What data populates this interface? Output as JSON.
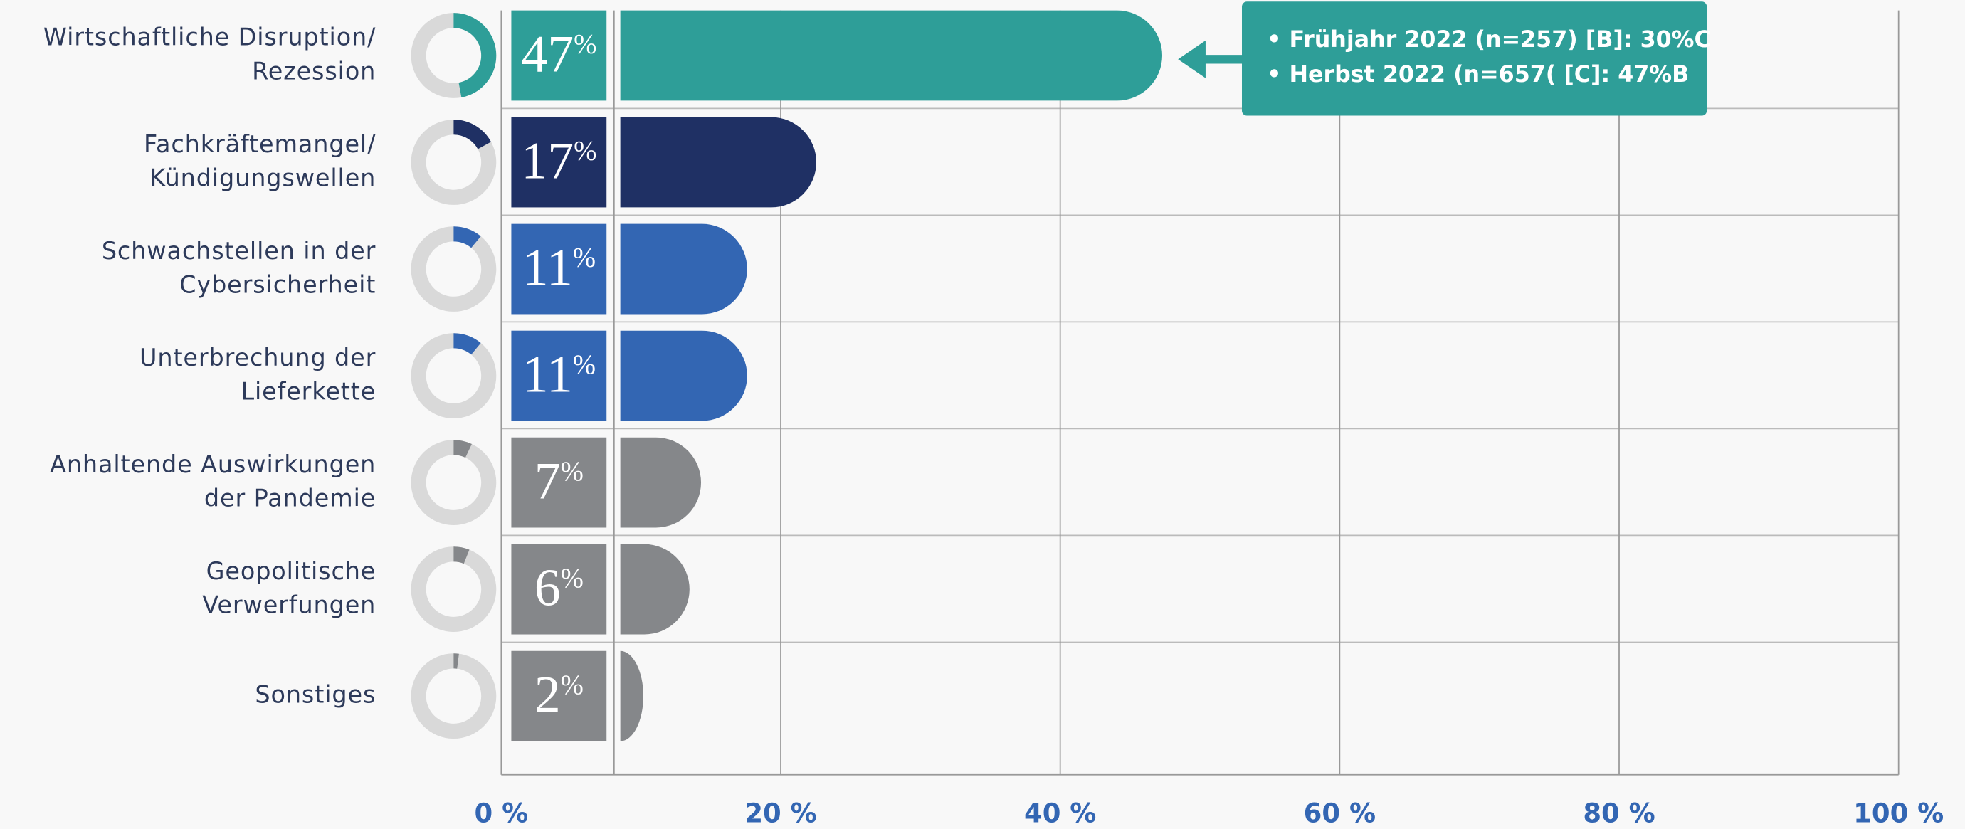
{
  "chart_data": {
    "type": "bar",
    "categories": [
      [
        "Wirtschaftliche Disruption/",
        "Rezession"
      ],
      [
        "Fachkräftemangel/",
        "Kündigungswellen"
      ],
      [
        "Schwachstellen in der",
        "Cybersicherheit"
      ],
      [
        "Unterbrechung der",
        "Lieferkette"
      ],
      [
        "Anhaltende Auswirkungen",
        "der Pandemie"
      ],
      [
        "Geopolitische",
        "Verwerfungen"
      ],
      [
        "Sonstiges"
      ]
    ],
    "values": [
      47,
      17,
      11,
      11,
      7,
      6,
      2
    ],
    "value_labels": [
      "47%",
      "17%",
      "11%",
      "11%",
      "7%",
      "6%",
      "2%"
    ],
    "colors": [
      "#2e9e98",
      "#1f3064",
      "#3366b3",
      "#3366b3",
      "#85878a",
      "#85878a",
      "#85878a"
    ],
    "xlim": [
      0,
      100
    ],
    "xticks": [
      {
        "value": 0,
        "label": "0 %"
      },
      {
        "value": 20,
        "label": "20 %"
      },
      {
        "value": 40,
        "label": "40 %"
      },
      {
        "value": 60,
        "label": "60 %"
      },
      {
        "value": 80,
        "label": "80 %"
      },
      {
        "value": 100,
        "label": "100 %"
      }
    ],
    "grid": true,
    "annotation": {
      "lines": [
        "• Frühjahr 2022 (n=257) [B]: 30%C",
        "• Herbst 2022 (n=657( [C]: 47%B"
      ],
      "color": "#2e9e98"
    }
  }
}
